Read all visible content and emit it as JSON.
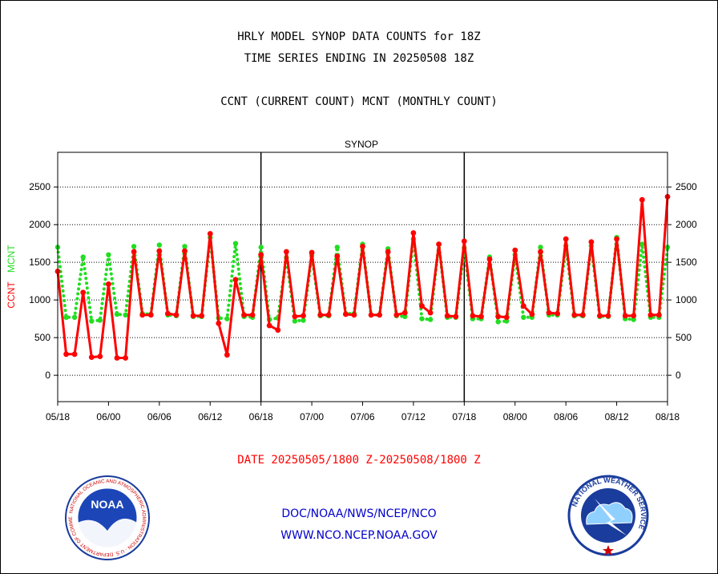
{
  "header": {
    "title_line1": "HRLY MODEL SYNOP DATA COUNTS for 18Z",
    "title_line2": "TIME SERIES ENDING IN 20250508 18Z",
    "subtitle": "CCNT (CURRENT COUNT) MCNT (MONTHLY COUNT)"
  },
  "footer": {
    "date_range": "DATE 20250505/1800 Z-20250508/1800 Z",
    "org_path": "DOC/NOAA/NWS/NCEP/NCO",
    "website": "WWW.NCO.NCEP.NOAA.GOV"
  },
  "logos": {
    "noaa_text": "NOAA",
    "noaa_ring": "NATIONAL OCEANIC AND ATMOSPHERIC ADMINISTRATION · U.S. DEPARTMENT OF COMMERCE",
    "nws_ring": "NATIONAL WEATHER SERVICE"
  },
  "colors": {
    "ccnt": "#ff0000",
    "mcnt": "#22dd22",
    "panel_title": "#0000cc",
    "footer_blue": "#0000cc",
    "footer_red": "#ff0000"
  },
  "chart_data": {
    "type": "line",
    "title": "SYNOP",
    "ylabel_left_parts": [
      {
        "text": "CCNT",
        "series": "CCNT"
      },
      {
        "text": "MCNT",
        "series": "MCNT"
      }
    ],
    "yticks": [
      0,
      500,
      1000,
      1500,
      2000,
      2500
    ],
    "ylim": [
      -350,
      2960
    ],
    "xticks": [
      "05/18",
      "06/00",
      "06/06",
      "06/12",
      "06/18",
      "07/00",
      "07/06",
      "07/12",
      "07/18",
      "08/00",
      "08/06",
      "08/12",
      "08/18"
    ],
    "x_unit_note": "one point per hour, 20250505/1800Z to 20250508/1800Z",
    "grid": "horizontal dotted at y ticks, vertical solid at day boundaries",
    "series": [
      {
        "name": "CCNT",
        "color": "#ff0000",
        "values": [
          1380,
          280,
          280,
          1100,
          240,
          250,
          1210,
          230,
          230,
          1640,
          800,
          800,
          1650,
          820,
          800,
          1650,
          790,
          790,
          1880,
          690,
          270,
          1270,
          800,
          800,
          1600,
          660,
          600,
          1640,
          780,
          790,
          1630,
          800,
          800,
          1580,
          810,
          800,
          1710,
          800,
          800,
          1640,
          800,
          830,
          1890,
          920,
          830,
          1740,
          790,
          780,
          1780,
          790,
          780,
          1540,
          780,
          770,
          1660,
          920,
          810,
          1640,
          830,
          820,
          1810,
          800,
          800,
          1770,
          790,
          790,
          1810,
          790,
          790,
          2330,
          800,
          800,
          2370
        ]
      },
      {
        "name": "MCNT",
        "color": "#22dd22",
        "values": [
          1700,
          770,
          770,
          1570,
          720,
          730,
          1600,
          810,
          800,
          1710,
          820,
          810,
          1730,
          800,
          790,
          1710,
          780,
          780,
          1830,
          760,
          750,
          1750,
          780,
          770,
          1700,
          740,
          760,
          1560,
          720,
          730,
          1590,
          790,
          790,
          1700,
          820,
          820,
          1740,
          800,
          800,
          1680,
          790,
          780,
          1810,
          750,
          740,
          1740,
          770,
          770,
          1690,
          750,
          750,
          1570,
          710,
          720,
          1600,
          770,
          770,
          1700,
          800,
          800,
          1720,
          790,
          790,
          1720,
          780,
          780,
          1830,
          750,
          740,
          1740,
          770,
          770,
          1700
        ]
      }
    ]
  }
}
